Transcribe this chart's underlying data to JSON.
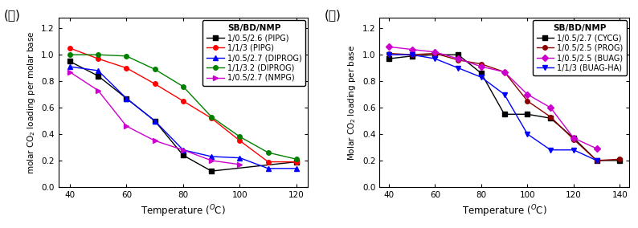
{
  "panel_a": {
    "label": "(가)",
    "title": "SB/BD/NMP",
    "xlabel": "Temperature ($^O$C)",
    "ylabel": "molar CO$_2$ loading per molar base",
    "xlim": [
      36,
      124
    ],
    "ylim": [
      0.0,
      1.28
    ],
    "xticks": [
      40,
      60,
      80,
      100,
      120
    ],
    "yticks": [
      0.0,
      0.2,
      0.4,
      0.6,
      0.8,
      1.0,
      1.2
    ],
    "series": [
      {
        "label": "1/0.5/2.6 (PIPG)",
        "color": "black",
        "marker": "s",
        "x": [
          40,
          50,
          60,
          70,
          80,
          90,
          120
        ],
        "y": [
          0.95,
          0.84,
          0.67,
          0.5,
          0.24,
          0.12,
          0.19
        ]
      },
      {
        "label": "1/1/3 (PIPG)",
        "color": "red",
        "marker": "o",
        "x": [
          40,
          50,
          60,
          70,
          80,
          90,
          100,
          110,
          120
        ],
        "y": [
          1.05,
          0.97,
          0.9,
          0.78,
          0.65,
          0.52,
          0.35,
          0.19,
          0.19
        ]
      },
      {
        "label": "1/0.5/2.7 (DIPROG)",
        "color": "blue",
        "marker": "^",
        "x": [
          40,
          50,
          60,
          70,
          80,
          90,
          100,
          110,
          120
        ],
        "y": [
          0.91,
          0.88,
          0.67,
          0.5,
          0.28,
          0.23,
          0.22,
          0.14,
          0.14
        ]
      },
      {
        "label": "1/1/3.2 (DIPROG)",
        "color": "green",
        "marker": "o",
        "x": [
          40,
          50,
          60,
          70,
          80,
          90,
          100,
          110,
          120
        ],
        "y": [
          1.0,
          1.0,
          0.99,
          0.89,
          0.76,
          0.53,
          0.38,
          0.26,
          0.21
        ]
      },
      {
        "label": "1/0.5/2.7 (NMPG)",
        "color": "#cc00cc",
        "marker": ">",
        "x": [
          40,
          50,
          60,
          70,
          80,
          90,
          100
        ],
        "y": [
          0.87,
          0.73,
          0.46,
          0.35,
          0.28,
          0.2,
          0.17
        ]
      }
    ]
  },
  "panel_b": {
    "label": "(나)",
    "title": "SB/BD/NMP",
    "xlabel": "Temperature ($^O$C)",
    "ylabel": "Molar CO$_2$ loading per base",
    "xlim": [
      36,
      144
    ],
    "ylim": [
      0.0,
      1.28
    ],
    "xticks": [
      40,
      60,
      80,
      100,
      120,
      140
    ],
    "yticks": [
      0.0,
      0.2,
      0.4,
      0.6,
      0.8,
      1.0,
      1.2
    ],
    "series": [
      {
        "label": "1/0.5/2.7 (CYCG)",
        "color": "black",
        "marker": "s",
        "x": [
          40,
          50,
          60,
          70,
          80,
          90,
          100,
          110,
          120,
          130,
          140
        ],
        "y": [
          0.97,
          0.99,
          1.0,
          1.0,
          0.86,
          0.55,
          0.55,
          0.52,
          0.37,
          0.2,
          0.2
        ]
      },
      {
        "label": "1/0.5/2.5 (PROG)",
        "color": "#8b0000",
        "marker": "o",
        "x": [
          40,
          50,
          60,
          70,
          80,
          90,
          100,
          110,
          120,
          130,
          140
        ],
        "y": [
          1.01,
          1.0,
          1.01,
          0.96,
          0.93,
          0.87,
          0.65,
          0.53,
          0.36,
          0.2,
          0.21
        ]
      },
      {
        "label": "1/0.5/2.5 (BUAG)",
        "color": "#cc00cc",
        "marker": "D",
        "x": [
          40,
          50,
          60,
          70,
          80,
          90,
          100,
          110,
          120,
          130
        ],
        "y": [
          1.06,
          1.04,
          1.02,
          0.97,
          0.91,
          0.87,
          0.7,
          0.6,
          0.37,
          0.29
        ]
      },
      {
        "label": "1/1/3 (BUAG-HA)",
        "color": "blue",
        "marker": "v",
        "x": [
          40,
          50,
          60,
          70,
          80,
          90,
          100,
          110,
          120,
          130
        ],
        "y": [
          1.0,
          1.0,
          0.97,
          0.9,
          0.83,
          0.7,
          0.4,
          0.28,
          0.28,
          0.2
        ]
      }
    ]
  }
}
